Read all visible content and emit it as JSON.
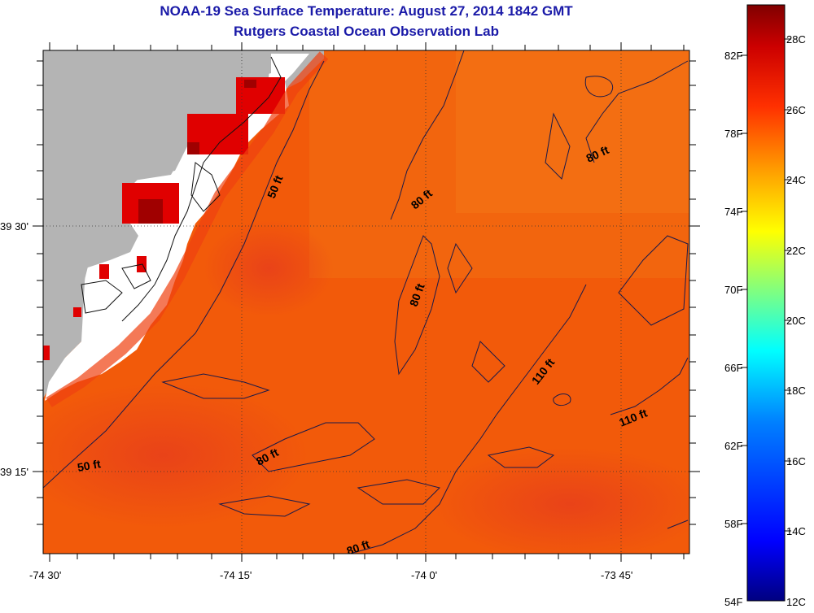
{
  "header": {
    "title": "NOAA-19 Sea Surface Temperature:  August 27, 2014 1842 GMT",
    "subtitle": "Rutgers Coastal Ocean Observation Lab"
  },
  "map": {
    "longitude_labels": [
      "-74 30'",
      "-74 15'",
      "-74 0'",
      "-73 45'"
    ],
    "latitude_labels": [
      "39 30'",
      "39 15'"
    ],
    "land_color": "#b4b4b4",
    "water_color": "#f25a0a",
    "contour_labels": [
      "50 ft",
      "50 ft",
      "80 ft",
      "80 ft",
      "80 ft",
      "80 ft",
      "80 ft",
      "110 ft",
      "110 ft"
    ]
  },
  "colorbar": {
    "fahrenheit_labels": [
      "82F",
      "78F",
      "74F",
      "70F",
      "66F",
      "62F",
      "58F",
      "54F"
    ],
    "celsius_labels": [
      "28C",
      "26C",
      "24C",
      "22C",
      "20C",
      "18C",
      "16C",
      "14C",
      "12C"
    ],
    "colors": [
      "#800000",
      "#ff0000",
      "#ff8000",
      "#ffff00",
      "#80ff80",
      "#00ffff",
      "#0080ff",
      "#0000ff",
      "#000080"
    ]
  }
}
